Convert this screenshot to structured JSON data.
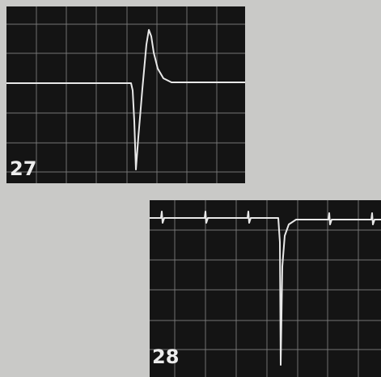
{
  "figures": [
    {
      "label": "27"
    },
    {
      "label": "28"
    }
  ]
}
